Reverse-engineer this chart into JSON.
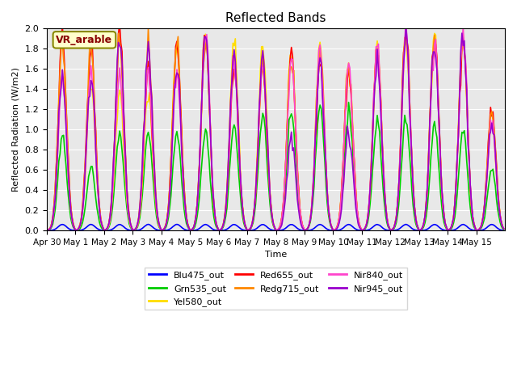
{
  "title": "Reflected Bands",
  "xlabel": "Time",
  "ylabel": "Reflected Radiation (W/m2)",
  "annotation": "VR_arable",
  "ylim": [
    0.0,
    2.0
  ],
  "yticks": [
    0.0,
    0.2,
    0.4,
    0.6,
    0.8,
    1.0,
    1.2,
    1.4,
    1.6,
    1.8,
    2.0
  ],
  "xtick_labels": [
    "Apr 30",
    "May 1",
    "May 2",
    "May 3",
    "May 4",
    "May 5",
    "May 6",
    "May 7",
    "May 8",
    "May 9",
    "May 10",
    "May 11",
    "May 12",
    "May 13",
    "May 14",
    "May 15"
  ],
  "series": [
    {
      "label": "Blu475_out",
      "color": "#0000ff",
      "lw": 1.2
    },
    {
      "label": "Grn535_out",
      "color": "#00cc00",
      "lw": 1.2
    },
    {
      "label": "Yel580_out",
      "color": "#ffdd00",
      "lw": 1.2
    },
    {
      "label": "Red655_out",
      "color": "#ff0000",
      "lw": 1.2
    },
    {
      "label": "Redg715_out",
      "color": "#ff8800",
      "lw": 1.2
    },
    {
      "label": "Nir840_out",
      "color": "#ff44cc",
      "lw": 1.2
    },
    {
      "label": "Nir945_out",
      "color": "#9900cc",
      "lw": 1.2
    }
  ],
  "bg_color": "#e8e8e8",
  "blu_peaks": [
    0.06,
    0.06,
    0.06,
    0.06,
    0.06,
    0.06,
    0.06,
    0.06,
    0.06,
    0.06,
    0.06,
    0.06,
    0.06,
    0.06,
    0.06,
    0.06
  ],
  "grn_peaks": [
    0.95,
    0.63,
    0.95,
    0.97,
    0.98,
    0.99,
    1.05,
    1.15,
    1.22,
    1.25,
    1.2,
    1.1,
    1.12,
    1.05,
    1.0,
    0.6
  ],
  "yel_peaks": [
    1.55,
    1.45,
    1.4,
    1.35,
    1.85,
    1.9,
    1.85,
    1.8,
    1.75,
    1.8,
    1.65,
    1.78,
    1.9,
    1.91,
    1.9,
    1.05
  ],
  "red_peaks": [
    1.9,
    1.85,
    1.95,
    1.6,
    1.85,
    1.95,
    1.6,
    1.6,
    1.72,
    1.65,
    1.6,
    1.8,
    2.0,
    1.95,
    1.92,
    1.2
  ],
  "redg_peaks": [
    1.85,
    1.8,
    1.85,
    1.85,
    1.85,
    1.9,
    1.75,
    1.65,
    1.72,
    1.75,
    1.65,
    1.8,
    1.9,
    1.9,
    1.9,
    1.15
  ],
  "nir840_peaks": [
    1.55,
    1.55,
    1.55,
    1.55,
    1.55,
    1.95,
    1.65,
    1.65,
    1.7,
    1.8,
    1.6,
    1.85,
    1.9,
    1.9,
    1.92,
    1.07
  ],
  "nir945_peaks": [
    1.5,
    1.55,
    1.9,
    1.8,
    1.65,
    1.95,
    1.7,
    1.7,
    0.9,
    1.65,
    0.95,
    1.65,
    1.9,
    1.9,
    1.92,
    1.05
  ]
}
